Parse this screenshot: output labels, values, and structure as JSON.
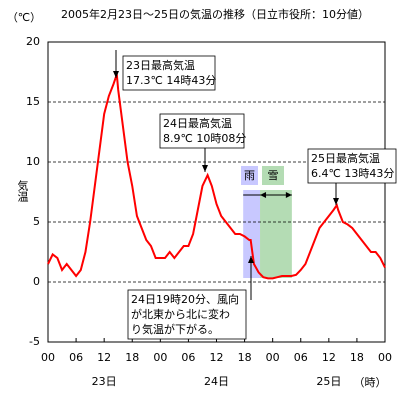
{
  "chart_data": {
    "type": "line",
    "title": "2005年2月23日～25日の気温の推移（日立市役所：10分値）",
    "y_unit": "（℃）",
    "y_label": "気温",
    "x_unit": "（時）",
    "x_groups": [
      {
        "label": "23日",
        "value": 12
      },
      {
        "label": "24日",
        "value": 36
      },
      {
        "label": "25日",
        "value": 60
      }
    ],
    "xlim": [
      0,
      72
    ],
    "xticks": [
      {
        "value": 0,
        "label": "00"
      },
      {
        "value": 6,
        "label": "06"
      },
      {
        "value": 12,
        "label": "12"
      },
      {
        "value": 18,
        "label": "18"
      },
      {
        "value": 24,
        "label": "00"
      },
      {
        "value": 30,
        "label": "06"
      },
      {
        "value": 36,
        "label": "12"
      },
      {
        "value": 42,
        "label": "18"
      },
      {
        "value": 48,
        "label": "00"
      },
      {
        "value": 54,
        "label": "06"
      },
      {
        "value": 60,
        "label": "12"
      },
      {
        "value": 66,
        "label": "18"
      },
      {
        "value": 72,
        "label": "00"
      }
    ],
    "ylim": [
      -5,
      20
    ],
    "yticks": [
      -5,
      0,
      5,
      10,
      15,
      20
    ],
    "grid": true,
    "series": [
      {
        "name": "気温",
        "color": "#ff0000",
        "x": [
          0,
          1,
          2,
          3,
          4,
          5,
          6,
          7,
          8,
          9,
          10,
          11,
          12,
          13,
          14,
          14.7,
          15,
          16,
          17,
          18,
          19,
          20,
          21,
          22,
          23,
          24,
          25,
          26,
          27,
          28,
          29,
          30,
          31,
          32,
          33,
          34.1,
          35,
          36,
          37,
          38,
          39,
          40,
          41,
          42,
          43,
          43.3,
          44,
          45,
          46,
          47,
          48,
          49,
          50,
          51,
          52,
          53,
          54,
          55,
          56,
          57,
          58,
          59,
          60,
          61,
          61.7,
          62,
          63,
          64,
          65,
          66,
          67,
          68,
          69,
          70,
          71,
          72
        ],
        "values": [
          1.5,
          2.3,
          2.0,
          1.0,
          1.5,
          1.0,
          0.5,
          1.0,
          2.5,
          5,
          8,
          11,
          14,
          15.5,
          16.5,
          17.3,
          16,
          13,
          10,
          8,
          5.5,
          4.5,
          3.5,
          3,
          2,
          2,
          2,
          2.5,
          2,
          2.5,
          3,
          3,
          4,
          6,
          8,
          8.9,
          8,
          6.5,
          5.5,
          5,
          4.5,
          4,
          4,
          3.8,
          3.5,
          3.5,
          1.5,
          0.8,
          0.4,
          0.3,
          0.3,
          0.4,
          0.5,
          0.5,
          0.5,
          0.6,
          1,
          1.5,
          2.5,
          3.5,
          4.5,
          5,
          5.5,
          6,
          6.4,
          6,
          5,
          4.8,
          4.5,
          4,
          3.5,
          3,
          2.5,
          2.5,
          2,
          1.2
        ]
      }
    ],
    "periods": [
      {
        "label": "雨",
        "start": 41.7,
        "end": 45.3,
        "color": "#c8c8ff"
      },
      {
        "label": "雪",
        "start": 45.3,
        "end": 52.1,
        "color": "#b4dcb4"
      }
    ],
    "annotations": [
      {
        "lines": [
          "23日最高気温",
          "17.3℃ 14時43分"
        ]
      },
      {
        "lines": [
          "24日最高気温",
          "8.9℃ 10時08分"
        ]
      },
      {
        "lines": [
          "25日最高気温",
          "6.4℃ 13時43分"
        ]
      },
      {
        "lines": [
          "24日19時20分、風向",
          "が北東から北に変わ",
          "り気温が下がる。"
        ]
      }
    ]
  }
}
